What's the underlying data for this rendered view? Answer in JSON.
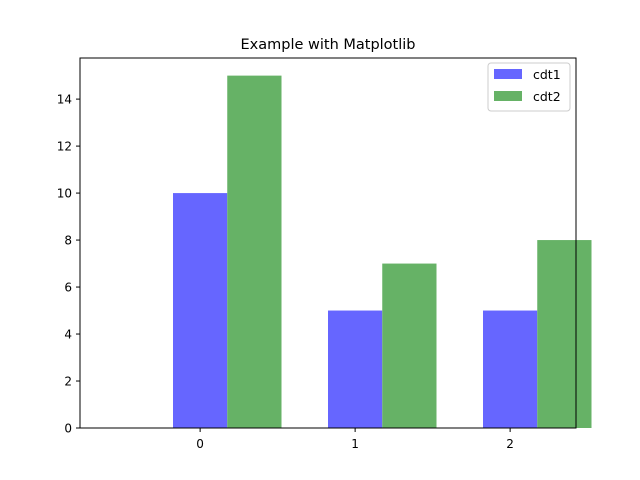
{
  "chart_data": {
    "type": "bar",
    "title": "Example with Matplotlib",
    "xlabel": "",
    "ylabel": "",
    "categories": [
      "0",
      "1",
      "2"
    ],
    "series": [
      {
        "name": "cdt1",
        "values": [
          10,
          5,
          5
        ],
        "color": "#6666ff"
      },
      {
        "name": "cdt2",
        "values": [
          15,
          7,
          8
        ],
        "color": "#66b266"
      }
    ],
    "ylim": [
      0,
      15.75
    ],
    "yticks": [
      "0",
      "2",
      "4",
      "6",
      "8",
      "10",
      "12",
      "14"
    ],
    "grid": false,
    "legend_position": "upper right"
  }
}
